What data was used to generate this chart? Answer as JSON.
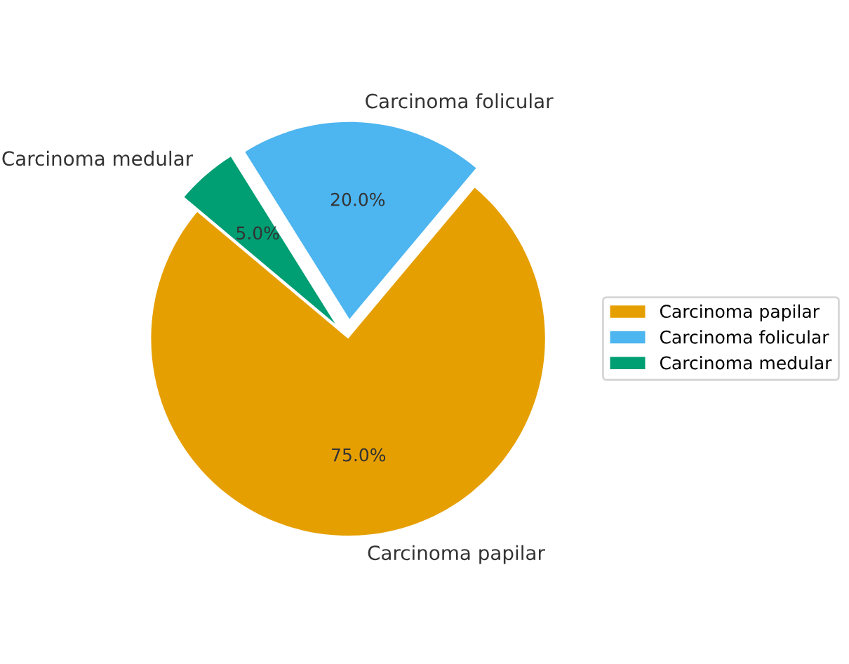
{
  "chart_data": {
    "type": "pie",
    "categories": [
      "Carcinoma papilar",
      "Carcinoma folicular",
      "Carcinoma medular"
    ],
    "values": [
      75,
      20,
      5
    ],
    "colors": [
      "#e69f00",
      "#4db5f0",
      "#009e73"
    ],
    "value_labels": [
      "75.0%",
      "20.0%",
      "5.0%"
    ],
    "legend": "right"
  }
}
